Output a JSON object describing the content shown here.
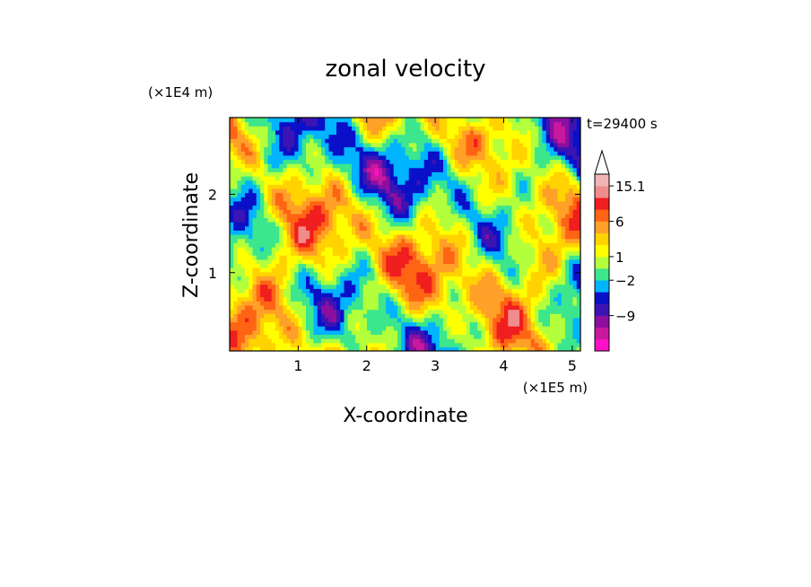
{
  "chart_data": {
    "type": "heatmap",
    "title": "zonal velocity",
    "xlabel": "X-coordinate",
    "ylabel": "Z-coordinate",
    "x_unit_label": "(×1E5 m)",
    "y_unit_label": "(×1E4 m)",
    "time_label": "t=29400 s",
    "x_ticks": [
      1,
      2,
      3,
      4,
      5
    ],
    "y_ticks": [
      1,
      2
    ],
    "xlim": [
      0,
      5.12
    ],
    "ylim": [
      0,
      2.98
    ],
    "colorbar": {
      "levels": [
        {
          "color": "#ff10c8"
        },
        {
          "color": "#c8189e"
        },
        {
          "color": "#8c0fa0"
        },
        {
          "color": "#3c14b4"
        },
        {
          "color": "#0a10c8"
        },
        {
          "color": "#00b4ff"
        },
        {
          "color": "#3ce68c"
        },
        {
          "color": "#b4ff3c"
        },
        {
          "color": "#ffff00"
        },
        {
          "color": "#ffd200"
        },
        {
          "color": "#ffa028"
        },
        {
          "color": "#ff6414"
        },
        {
          "color": "#f01e1e"
        },
        {
          "color": "#f08c8c"
        },
        {
          "color": "#f0b4b4"
        },
        {
          "color": "#ffffff"
        }
      ],
      "tick_labels": [
        "15.1",
        "6",
        "1",
        "−2",
        "−9"
      ]
    }
  }
}
